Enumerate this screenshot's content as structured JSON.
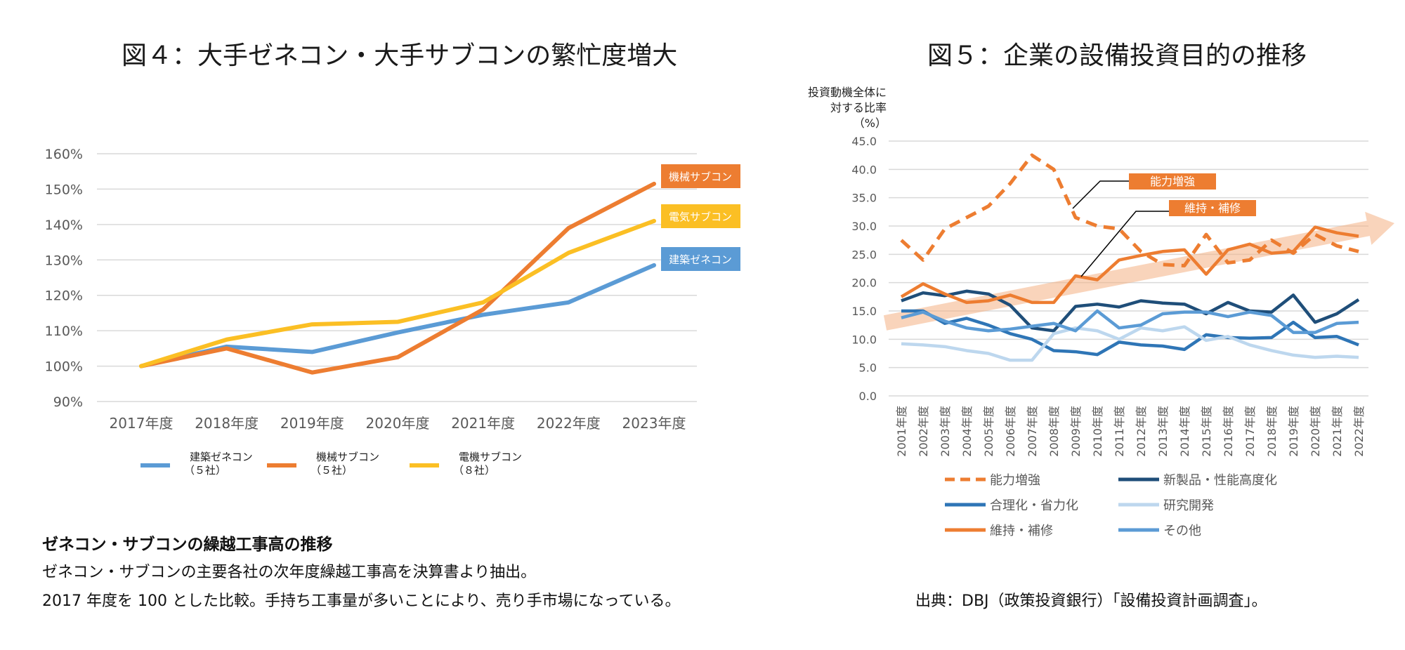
{
  "fig4": {
    "title": "図４：大手ゼネコン・大手サブコンの繁忙度増大",
    "note_heading": "ゼネコン・サブコンの繰越工事高の推移",
    "note_line1": "ゼネコン・サブコンの主要各社の次年度繰越工事高を決算書より抽出。",
    "note_line2": "2017 年度を 100 とした比較。手持ち工事量が多いことにより、売り手市場になっている。"
  },
  "fig5": {
    "title": "図５：企業の設備投資目的の推移",
    "source": "出典：DBJ（政策投資銀行）「設備投資計画調査」。"
  },
  "chart_data": [
    {
      "type": "line",
      "title": "図４：大手ゼネコン・大手サブコンの繁忙度増大",
      "categories": [
        "2017年度",
        "2018年度",
        "2019年度",
        "2020年度",
        "2021年度",
        "2022年度",
        "2023年度"
      ],
      "y_ticks": [
        "90%",
        "100%",
        "110%",
        "120%",
        "130%",
        "140%",
        "150%",
        "160%"
      ],
      "ylim": [
        90,
        160
      ],
      "grid": true,
      "legend": "bottom-left",
      "series": [
        {
          "name": "建築ゼネコン",
          "legend_sub": "（５社）",
          "tag": "建築ゼネコン",
          "color": "#5b9bd5",
          "values": [
            100,
            105.5,
            104,
            109.5,
            114.5,
            118,
            128.5
          ]
        },
        {
          "name": "機械サブコン",
          "legend_sub": "（５社）",
          "tag": "機械サブコン",
          "color": "#ed7d31",
          "values": [
            100,
            105,
            98.2,
            102.5,
            116,
            139,
            151.5
          ]
        },
        {
          "name": "電機サブコン",
          "legend_sub": "（８社）",
          "tag": "電気サブコン",
          "color": "#fbbf24",
          "values": [
            100,
            107.5,
            111.8,
            112.5,
            118,
            132,
            141
          ]
        }
      ]
    },
    {
      "type": "line",
      "title": "図５：企業の設備投資目的の推移",
      "ylabel": [
        "投資動機全体に",
        "対する比率",
        "（%）"
      ],
      "categories": [
        "2001年度",
        "2002年度",
        "2003年度",
        "2004年度",
        "2005年度",
        "2006年度",
        "2007年度",
        "2008年度",
        "2009年度",
        "2010年度",
        "2011年度",
        "2012年度",
        "2013年度",
        "2014年度",
        "2015年度",
        "2016年度",
        "2017年度",
        "2018年度",
        "2019年度",
        "2020年度",
        "2021年度",
        "2022年度"
      ],
      "y_ticks": [
        "0.0",
        "5.0",
        "10.0",
        "15.0",
        "20.0",
        "25.0",
        "30.0",
        "35.0",
        "40.0",
        "45.0"
      ],
      "ylim": [
        0,
        45
      ],
      "grid": true,
      "legend": "bottom",
      "trend_arrow": true,
      "callouts": [
        {
          "text": "能力増強",
          "series": "能力増強",
          "x": "2009年度",
          "y": 33
        },
        {
          "text": "維持・補修",
          "series": "維持・補修",
          "x": "2009年度",
          "y": 21
        }
      ],
      "series": [
        {
          "name": "能力増強",
          "color": "#ed7d31",
          "dash": true,
          "values": [
            27.5,
            24,
            29.5,
            31.5,
            33.5,
            37.5,
            42.5,
            40,
            31.5,
            30,
            29.5,
            25.5,
            23.2,
            23,
            28.5,
            23.5,
            24,
            27.5,
            25.2,
            28.5,
            26.5,
            25.5
          ]
        },
        {
          "name": "新製品・性能高度化",
          "color": "#1f4e79",
          "values": [
            16.8,
            18.2,
            17.7,
            18.5,
            18,
            16,
            12,
            11.5,
            15.8,
            16.2,
            15.7,
            16.8,
            16.4,
            16.2,
            14.5,
            16.5,
            15,
            14.8,
            17.8,
            13,
            14.5,
            17
          ]
        },
        {
          "name": "合理化・省力化",
          "color": "#2e75b6",
          "values": [
            15,
            15,
            12.8,
            13.7,
            12.5,
            11,
            10,
            8,
            7.8,
            7.3,
            9.5,
            9,
            8.8,
            8.2,
            10.8,
            10.3,
            10.2,
            10.3,
            13,
            10.3,
            10.5,
            9
          ]
        },
        {
          "name": "研究開発",
          "color": "#bdd7ee",
          "values": [
            9.2,
            9,
            8.7,
            8,
            7.5,
            6.3,
            6.3,
            11,
            12,
            11.5,
            10,
            12,
            11.5,
            12.2,
            9.8,
            10.5,
            9,
            8,
            7.2,
            6.8,
            7,
            6.8
          ]
        },
        {
          "name": "維持・補修",
          "color": "#ed7d31",
          "values": [
            17.5,
            19.8,
            18,
            16.5,
            16.8,
            17.8,
            16.5,
            16.5,
            21.2,
            20.5,
            24,
            24.8,
            25.5,
            25.8,
            21.5,
            25.8,
            26.8,
            25.2,
            25.5,
            29.8,
            28.8,
            28.2
          ]
        },
        {
          "name": "その他",
          "color": "#5b9bd5",
          "values": [
            13.8,
            14.8,
            13.2,
            12,
            11.5,
            11.8,
            12.3,
            12.8,
            11.5,
            15,
            12,
            12.5,
            14.5,
            14.8,
            14.8,
            14,
            14.8,
            14.2,
            11.2,
            11.2,
            12.8,
            13
          ]
        }
      ]
    }
  ]
}
